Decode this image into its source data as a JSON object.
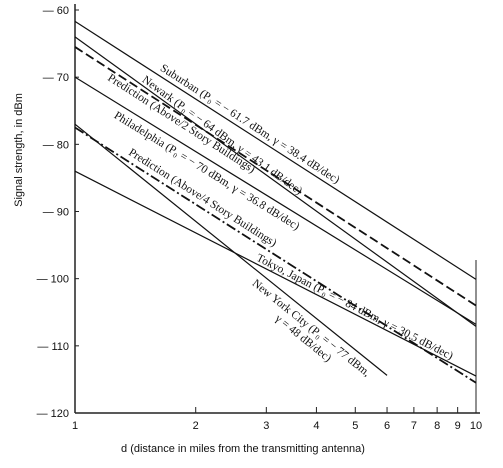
{
  "chart_data": {
    "type": "line",
    "x_label": "d (distance in miles from the transmitting antenna)",
    "y_label": "Signal strength, in dBm",
    "xscale": "log",
    "xlim": [
      1,
      10
    ],
    "xticks": [
      1,
      2,
      3,
      4,
      5,
      6,
      7,
      8,
      9,
      10
    ],
    "ylim": [
      -120,
      -60
    ],
    "yticks": [
      {
        "value": -60,
        "label": "— 60"
      },
      {
        "value": -70,
        "label": "— 70"
      },
      {
        "value": -80,
        "label": "— 80"
      },
      {
        "value": -90,
        "label": "— 90"
      },
      {
        "value": -100,
        "label": "— 100"
      },
      {
        "value": -110,
        "label": "— 110"
      },
      {
        "value": -120,
        "label": "— 120"
      }
    ],
    "series": [
      {
        "label": [
          "Suburban (P₀ = − 61.7 dBm, γ = 38.4 dB/dec)"
        ],
        "color": "#111",
        "dash": "solid",
        "x": [
          1,
          10
        ],
        "values": [
          -61.7,
          -100.1
        ]
      },
      {
        "label": [
          "Newark (P₀ = − 64 dBm, γ = 43.1 dB/dec)"
        ],
        "color": "#111",
        "dash": "solid",
        "x": [
          1,
          10
        ],
        "values": [
          -64,
          -107.1
        ]
      },
      {
        "label": [
          "Prediction (Above/2 Story Buildings)"
        ],
        "color": "#111",
        "dash": "dashed",
        "x": [
          1,
          10
        ],
        "values": [
          -65.5,
          -104
        ]
      },
      {
        "label": [
          "Philadelphia (P₀ = − 70 dBm, γ = 36.8 dB/dec)"
        ],
        "color": "#111",
        "dash": "solid",
        "x": [
          1,
          10
        ],
        "values": [
          -70,
          -106.8
        ]
      },
      {
        "label": [
          "Prediction (Above/4 Story Buildings)"
        ],
        "color": "#111",
        "dash": "dashdot",
        "x": [
          1,
          10
        ],
        "values": [
          -77.5,
          -115.5
        ]
      },
      {
        "label": [
          "Tokyo, Japan (P₀ = − 84 dBm, γ = 30.5 dB/dec)"
        ],
        "color": "#111",
        "dash": "solid",
        "x": [
          1,
          10
        ],
        "values": [
          -84,
          -114.5
        ]
      },
      {
        "label": [
          "New York City (P₀ = − 77 dBm,",
          "γ = 48 dB/dec)"
        ],
        "color": "#111",
        "dash": "solid",
        "x": [
          1,
          6
        ],
        "values": [
          -77,
          -114.4
        ]
      }
    ]
  }
}
